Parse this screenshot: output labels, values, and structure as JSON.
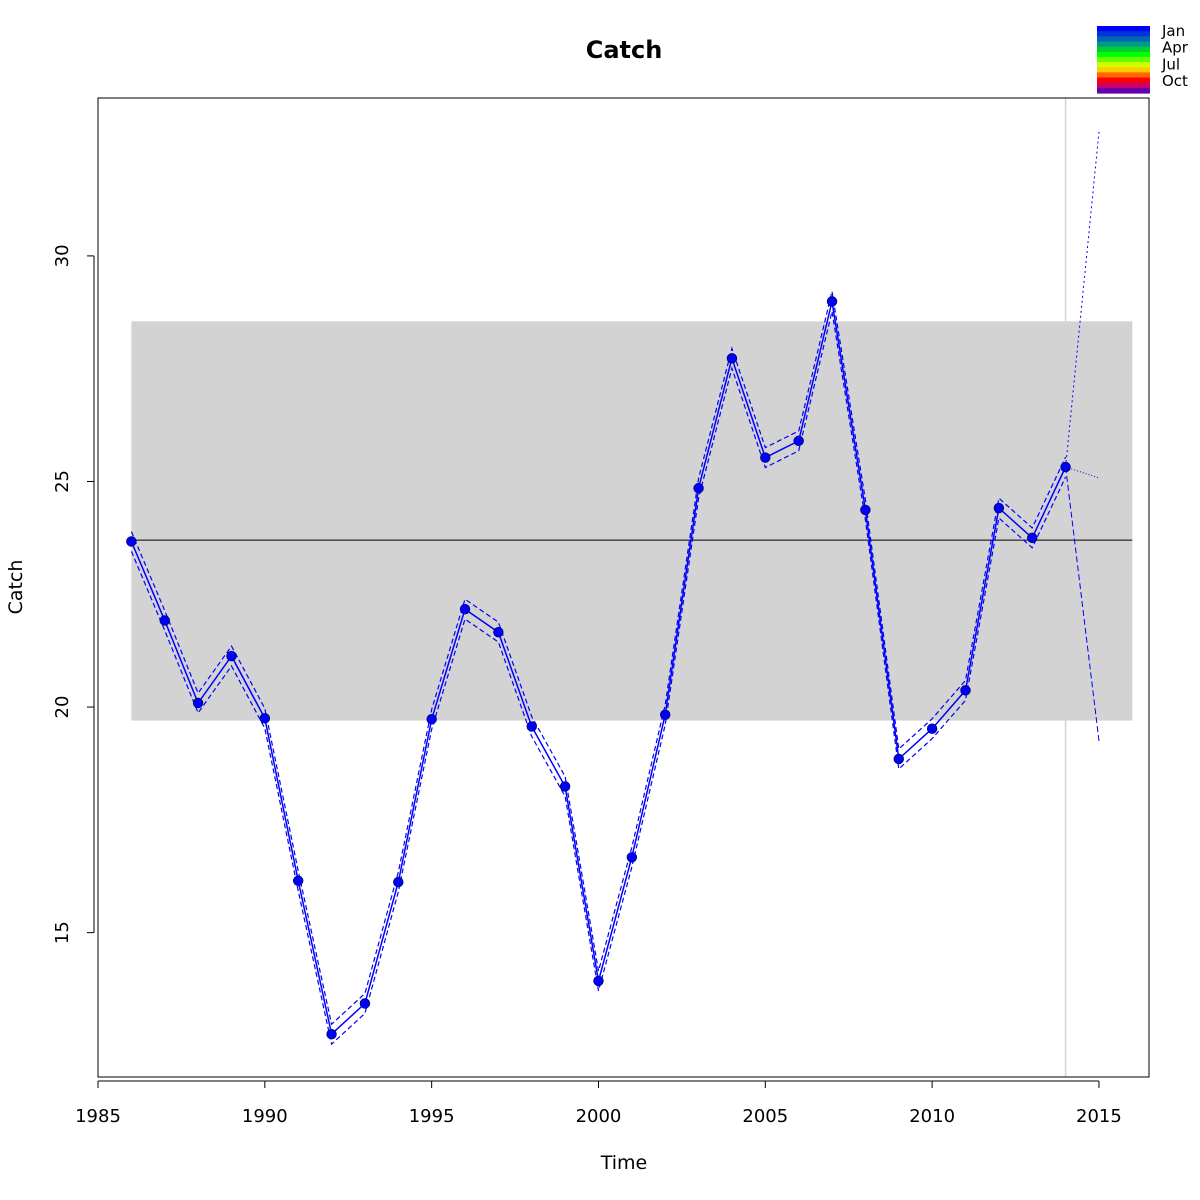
{
  "chart_data": {
    "type": "line",
    "title": "Catch",
    "xlabel": "Time",
    "ylabel": "Catch",
    "xlim": [
      1985,
      2016.5
    ],
    "ylim": [
      11.8,
      33.5
    ],
    "x_ticks": [
      1985,
      1990,
      1995,
      2000,
      2005,
      2010,
      2015
    ],
    "y_ticks": [
      15,
      20,
      25,
      30
    ],
    "grid": false,
    "reference_line": 23.7,
    "band": {
      "x": [
        1986,
        2016
      ],
      "y": [
        19.7,
        28.55
      ],
      "color": "#d3d3d3"
    },
    "forecast_start": 2014,
    "series": [
      {
        "color": "#0000ff",
        "x": [
          1986,
          1987,
          1988,
          1989,
          1990,
          1991,
          1992,
          1993,
          1994,
          1995,
          1996,
          1997,
          1998,
          1999,
          2000,
          2001,
          2002,
          2003,
          2004,
          2005,
          2006,
          2007,
          2008,
          2009,
          2010,
          2011,
          2012,
          2013,
          2014
        ],
        "y": [
          23.67,
          21.92,
          20.09,
          21.13,
          19.75,
          16.15,
          12.75,
          13.43,
          16.12,
          19.73,
          22.17,
          21.66,
          19.57,
          18.24,
          13.93,
          16.67,
          19.83,
          24.85,
          27.73,
          25.53,
          25.9,
          28.99,
          24.37,
          18.85,
          19.52,
          20.37,
          24.41,
          23.75,
          25.32
        ]
      }
    ],
    "upper_band_offset": 0.22,
    "forecast": {
      "x": [
        2014,
        2015
      ],
      "mid": [
        25.32,
        25.08
      ],
      "upper": [
        25.32,
        32.75
      ],
      "lower": [
        25.32,
        19.25
      ]
    },
    "legend": {
      "position": "top-right",
      "labels": [
        "Jan",
        "Apr",
        "Jul",
        "Oct"
      ],
      "colors": [
        "#0000ff",
        "#0033d9",
        "#0066b3",
        "#00998c",
        "#00cc33",
        "#00ff00",
        "#66ff00",
        "#ccff00",
        "#ffcc00",
        "#ff6600",
        "#ff0000",
        "#cc0066",
        "#6600aa"
      ]
    }
  }
}
